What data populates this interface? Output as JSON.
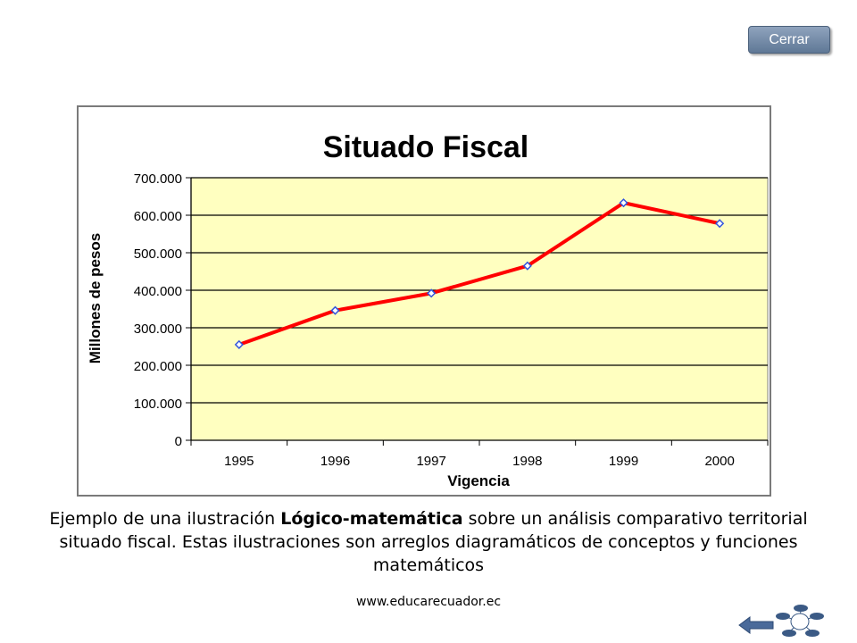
{
  "close_button": {
    "label": "Cerrar"
  },
  "chart_data": {
    "type": "line",
    "title": "Situado Fiscal",
    "xlabel": "Vigencia",
    "ylabel": "Millones de pesos",
    "categories": [
      "1995",
      "1996",
      "1997",
      "1998",
      "1999",
      "2000"
    ],
    "series": [
      {
        "values": [
          255000,
          346000,
          392000,
          465000,
          633000,
          578000
        ]
      }
    ],
    "ylim": [
      0,
      700000
    ],
    "yticks": [
      0,
      100000,
      200000,
      300000,
      400000,
      500000,
      600000,
      700000
    ],
    "ytick_labels": [
      "0",
      "100.000",
      "200.000",
      "300.000",
      "400.000",
      "500.000",
      "600.000",
      "700.000"
    ],
    "grid": true,
    "colors": {
      "line": "#ff0000",
      "marker": "#3355dd",
      "plot_bg": "#ffffc0",
      "grid": "#000000"
    }
  },
  "caption": {
    "before": "Ejemplo de una ilustración ",
    "bold": "Lógico-matemática",
    "after": " sobre un análisis comparativo territorial situado fiscal. Estas ilustraciones son arreglos diagramáticos de conceptos y funciones matemáticos"
  },
  "site_url": "www.educarecuador.ec",
  "nav": {
    "back_icon": "back-arrow-icon",
    "diagram_icon": "concept-map-icon"
  }
}
